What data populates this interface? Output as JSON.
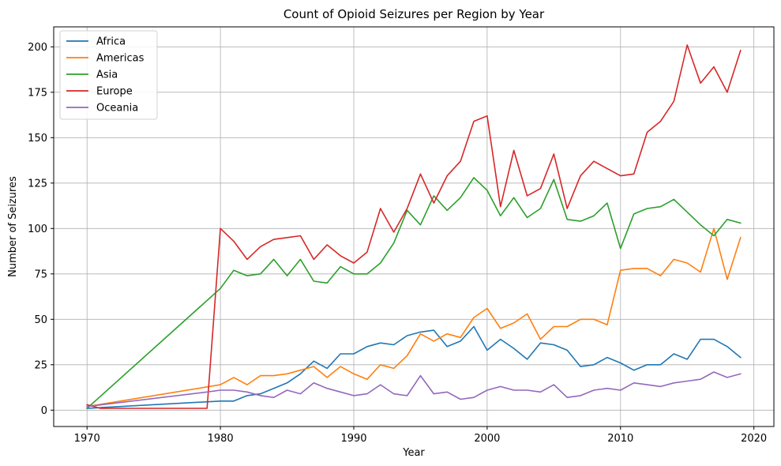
{
  "chart_data": {
    "type": "line",
    "title": "Count of Opioid Seizures per Region by Year",
    "xlabel": "Year",
    "ylabel": "Number of Seizures",
    "xlim": [
      1967.5,
      2021.5
    ],
    "ylim": [
      -9,
      211
    ],
    "xticks": [
      1970,
      1980,
      1990,
      2000,
      2010,
      2020
    ],
    "yticks": [
      0,
      25,
      50,
      75,
      100,
      125,
      150,
      175,
      200
    ],
    "grid": true,
    "legend_position": "top-left",
    "series": [
      {
        "name": "Africa",
        "color": "#1f77b4",
        "x": [
          1970,
          1980,
          1981,
          1982,
          1983,
          1984,
          1985,
          1986,
          1987,
          1988,
          1989,
          1990,
          1991,
          1992,
          1993,
          1994,
          1995,
          1996,
          1997,
          1998,
          1999,
          2000,
          2001,
          2002,
          2003,
          2004,
          2005,
          2006,
          2007,
          2008,
          2009,
          2010,
          2011,
          2012,
          2013,
          2014,
          2015,
          2016,
          2017,
          2018,
          2019
        ],
        "y": [
          1,
          5,
          5,
          8,
          9,
          12,
          15,
          20,
          27,
          23,
          31,
          31,
          35,
          37,
          36,
          41,
          43,
          44,
          35,
          38,
          46,
          33,
          39,
          34,
          28,
          37,
          36,
          33,
          24,
          25,
          29,
          26,
          22,
          25,
          25,
          31,
          28,
          39,
          39,
          35,
          29
        ]
      },
      {
        "name": "Americas",
        "color": "#ff7f0e",
        "x": [
          1970,
          1980,
          1981,
          1982,
          1983,
          1984,
          1985,
          1986,
          1987,
          1988,
          1989,
          1990,
          1991,
          1992,
          1993,
          1994,
          1995,
          1996,
          1997,
          1998,
          1999,
          2000,
          2001,
          2002,
          2003,
          2004,
          2005,
          2006,
          2007,
          2008,
          2009,
          2010,
          2011,
          2012,
          2013,
          2014,
          2015,
          2016,
          2017,
          2018,
          2019
        ],
        "y": [
          2,
          14,
          18,
          14,
          19,
          19,
          20,
          22,
          24,
          18,
          24,
          20,
          17,
          25,
          23,
          30,
          42,
          38,
          42,
          40,
          51,
          56,
          45,
          48,
          53,
          39,
          46,
          46,
          50,
          50,
          47,
          77,
          78,
          78,
          74,
          83,
          81,
          76,
          100,
          72,
          95
        ]
      },
      {
        "name": "Asia",
        "color": "#2ca02c",
        "x": [
          1970,
          1980,
          1981,
          1982,
          1983,
          1984,
          1985,
          1986,
          1987,
          1988,
          1989,
          1990,
          1991,
          1992,
          1993,
          1994,
          1995,
          1996,
          1997,
          1998,
          1999,
          2000,
          2001,
          2002,
          2003,
          2004,
          2005,
          2006,
          2007,
          2008,
          2009,
          2010,
          2011,
          2012,
          2013,
          2014,
          2015,
          2016,
          2017,
          2018,
          2019
        ],
        "y": [
          1,
          67,
          77,
          74,
          75,
          83,
          74,
          83,
          71,
          70,
          79,
          75,
          75,
          81,
          92,
          110,
          102,
          118,
          110,
          117,
          128,
          121,
          107,
          117,
          106,
          111,
          127,
          105,
          104,
          107,
          114,
          89,
          108,
          111,
          112,
          116,
          109,
          102,
          96,
          105,
          103
        ]
      },
      {
        "name": "Europe",
        "color": "#d62728",
        "x": [
          1970,
          1971,
          1979,
          1980,
          1981,
          1982,
          1983,
          1984,
          1985,
          1986,
          1987,
          1988,
          1989,
          1990,
          1991,
          1992,
          1993,
          1994,
          1995,
          1996,
          1997,
          1998,
          1999,
          2000,
          2001,
          2002,
          2003,
          2004,
          2005,
          2006,
          2007,
          2008,
          2009,
          2010,
          2011,
          2012,
          2013,
          2014,
          2015,
          2016,
          2017,
          2018,
          2019
        ],
        "y": [
          3,
          1,
          1,
          100,
          93,
          83,
          90,
          94,
          95,
          96,
          83,
          91,
          85,
          81,
          87,
          111,
          98,
          111,
          130,
          114,
          129,
          137,
          159,
          162,
          112,
          143,
          118,
          122,
          141,
          111,
          129,
          137,
          133,
          129,
          130,
          153,
          159,
          170,
          201,
          180,
          189,
          175,
          198
        ]
      },
      {
        "name": "Oceania",
        "color": "#9467bd",
        "x": [
          1970,
          1979,
          1980,
          1981,
          1982,
          1983,
          1984,
          1985,
          1986,
          1987,
          1988,
          1989,
          1990,
          1991,
          1992,
          1993,
          1994,
          1995,
          1996,
          1997,
          1998,
          1999,
          2000,
          2001,
          2002,
          2003,
          2004,
          2005,
          2006,
          2007,
          2008,
          2009,
          2010,
          2011,
          2012,
          2013,
          2014,
          2015,
          2016,
          2017,
          2018,
          2019
        ],
        "y": [
          2,
          10,
          11,
          11,
          10,
          8,
          7,
          11,
          9,
          15,
          12,
          10,
          8,
          9,
          14,
          9,
          8,
          19,
          9,
          10,
          6,
          7,
          11,
          13,
          11,
          11,
          10,
          14,
          7,
          8,
          11,
          12,
          11,
          15,
          14,
          13,
          15,
          16,
          17,
          21,
          18,
          20
        ]
      }
    ]
  }
}
